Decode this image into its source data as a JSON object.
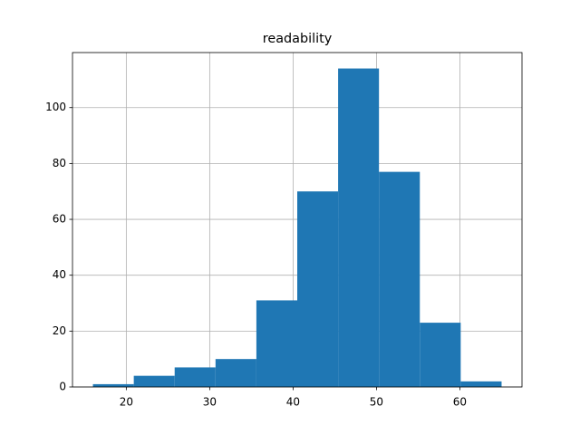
{
  "chart_data": {
    "type": "histogram",
    "title": "readability",
    "bins": [
      16,
      20.9,
      25.8,
      30.7,
      35.6,
      40.5,
      45.4,
      50.3,
      55.2,
      60.1,
      65
    ],
    "values": [
      1,
      4,
      7,
      10,
      31,
      70,
      114,
      77,
      23,
      2
    ],
    "color": "#1f77b4",
    "xlim": [
      13.55,
      67.45
    ],
    "xticks": [
      20,
      30,
      40,
      50,
      60
    ],
    "ylim": [
      0,
      119.7
    ],
    "yticks": [
      0,
      20,
      40,
      60,
      80,
      100
    ],
    "grid": true
  }
}
